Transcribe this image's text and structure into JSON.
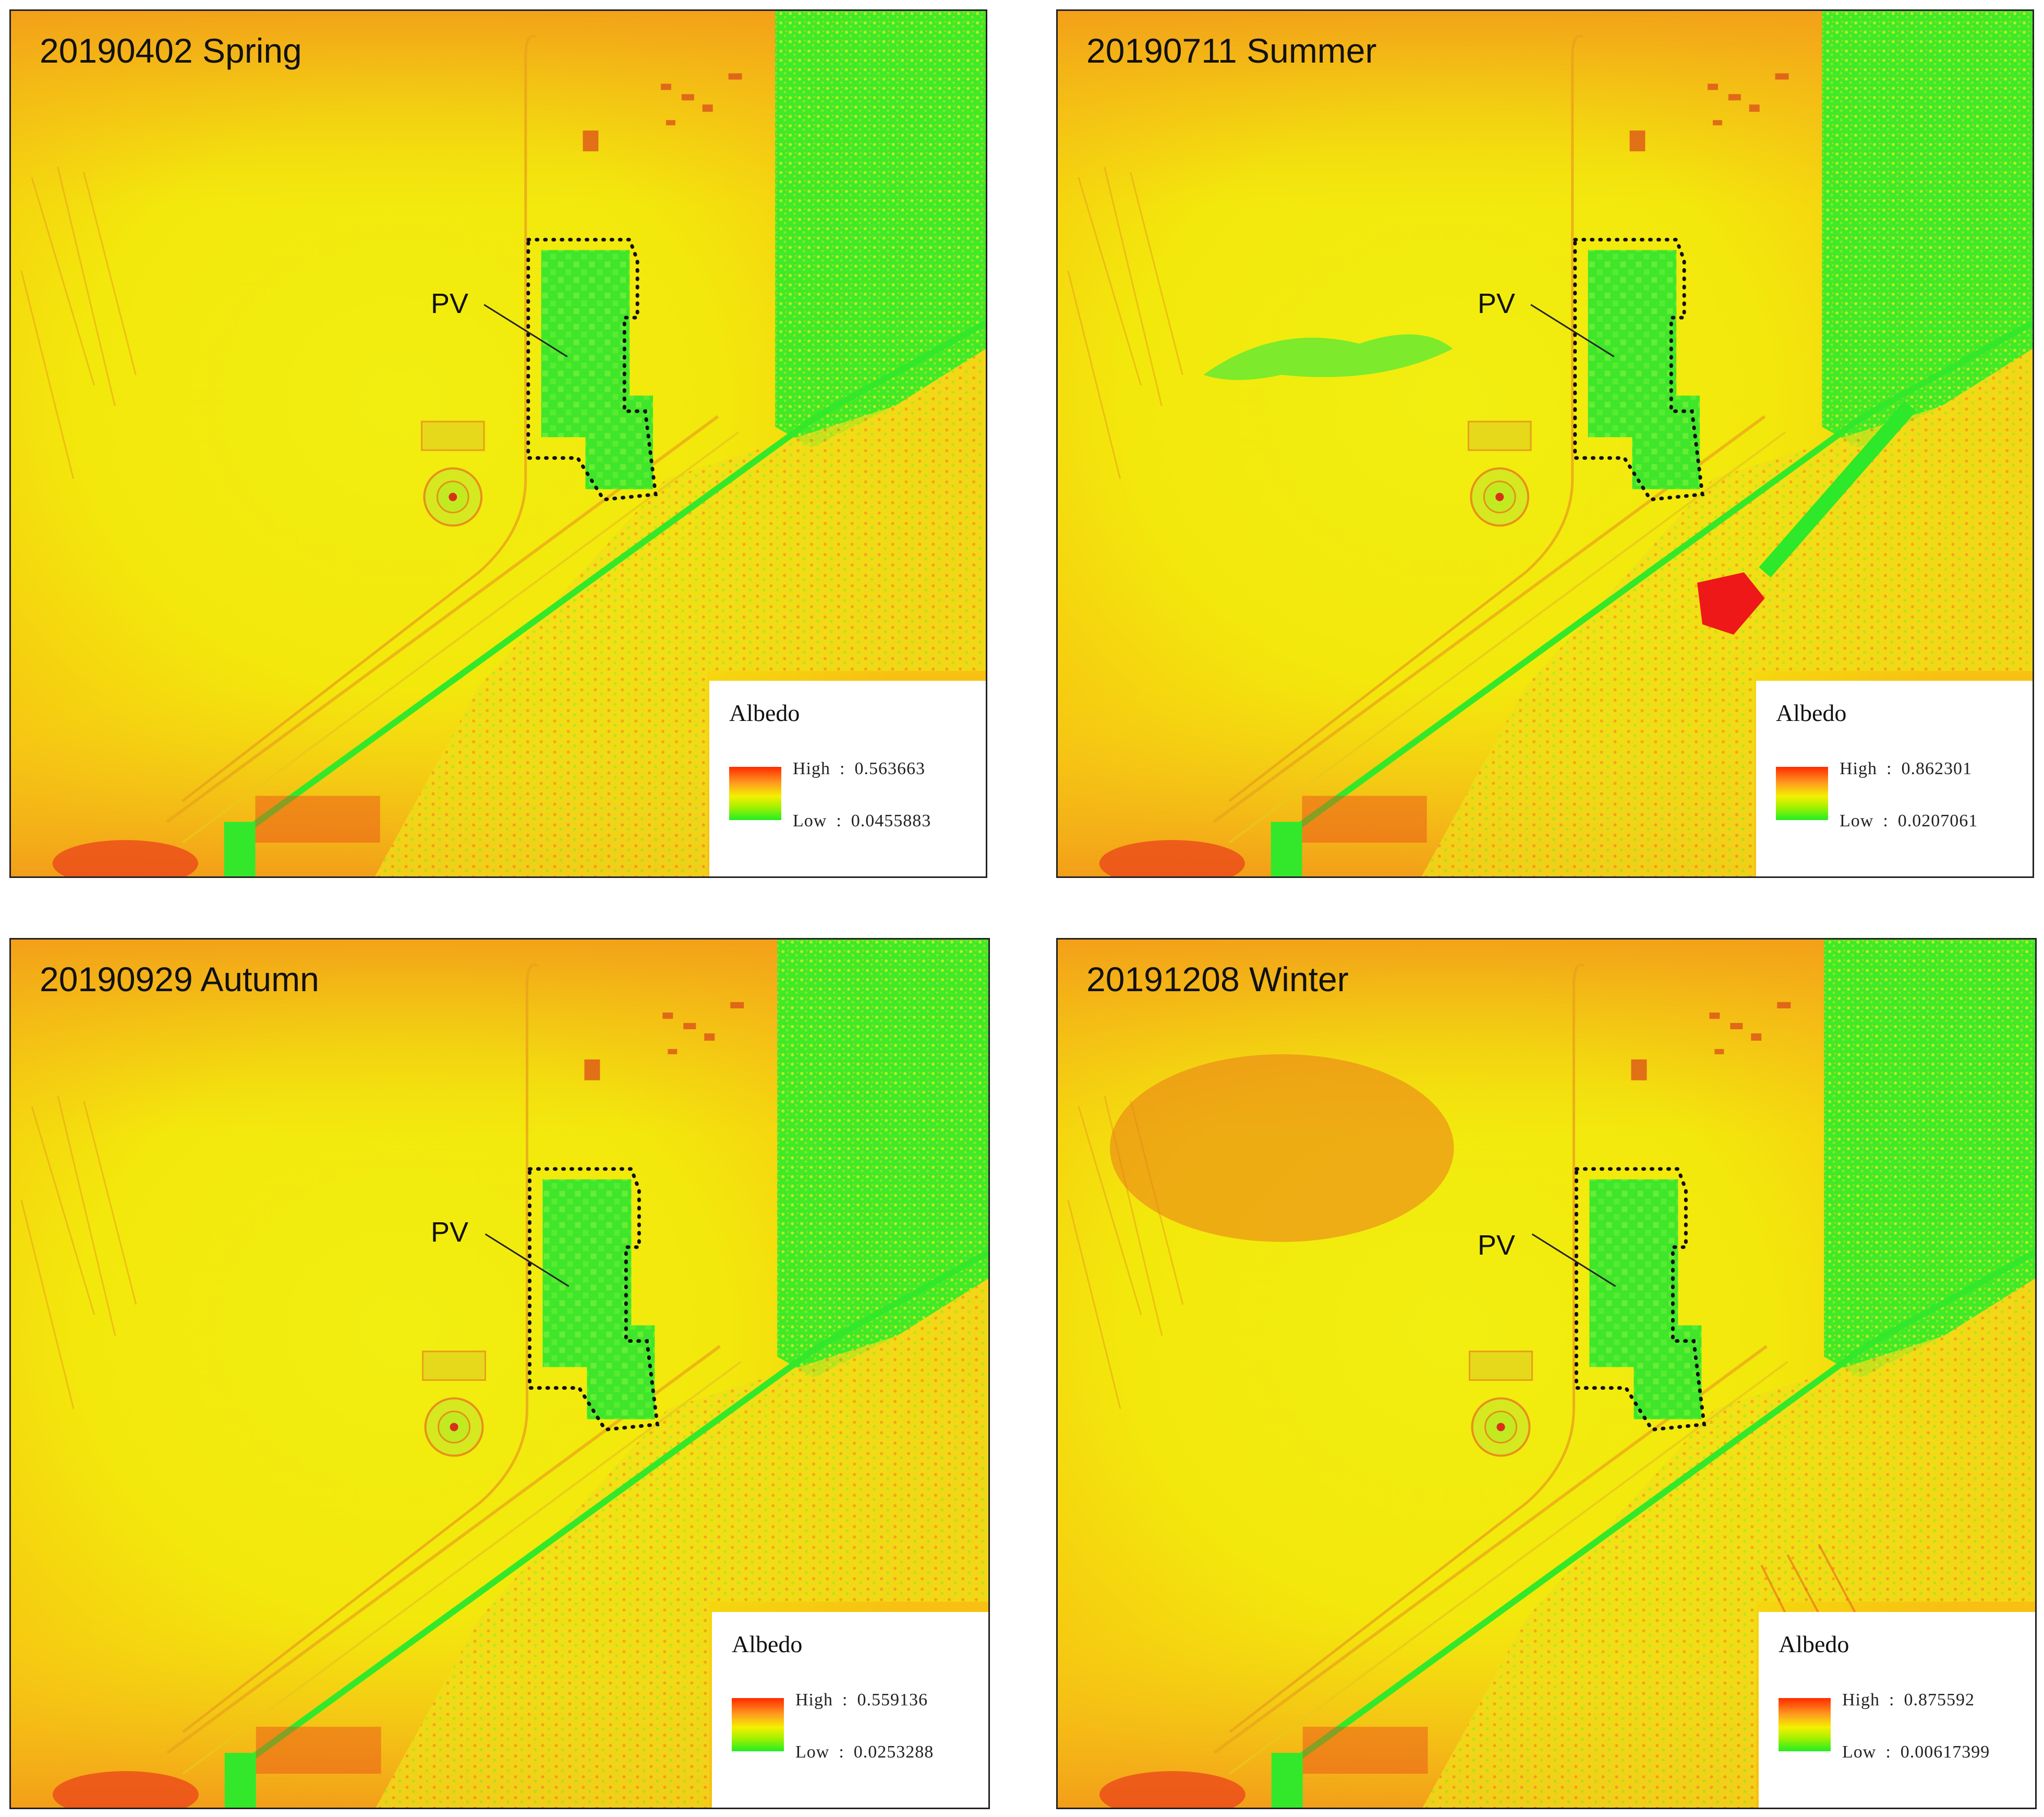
{
  "panels": [
    {
      "title": "20190402 Spring",
      "pv_label": "PV",
      "legend": {
        "title": "Albedo",
        "high_label": "High",
        "high_value": "0.563663",
        "low_label": "Low",
        "low_value": "0.0455883"
      }
    },
    {
      "title": "20190711 Summer",
      "pv_label": "PV",
      "legend": {
        "title": "Albedo",
        "high_label": "High",
        "high_value": "0.862301",
        "low_label": "Low",
        "low_value": "0.0207061"
      }
    },
    {
      "title": "20190929 Autumn",
      "pv_label": "PV",
      "legend": {
        "title": "Albedo",
        "high_label": "High",
        "high_value": "0.559136",
        "low_label": "Low",
        "low_value": "0.0253288"
      }
    },
    {
      "title": "20191208 Winter",
      "pv_label": "PV",
      "legend": {
        "title": "Albedo",
        "high_label": "High",
        "high_value": "0.875592",
        "low_label": "Low",
        "low_value": "0.00617399"
      }
    }
  ],
  "colors": {
    "high": "#ff2a00",
    "mid": "#f4f000",
    "low": "#22ee22"
  },
  "legend_separator": ":"
}
